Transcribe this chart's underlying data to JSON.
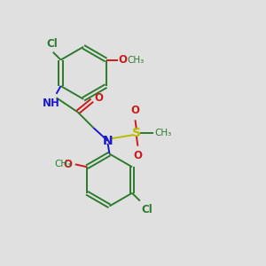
{
  "bg_color": "#e0e0e0",
  "bond_color": "#2d7a2d",
  "N_color": "#1a1acc",
  "O_color": "#cc1a1a",
  "S_color": "#bbbb00",
  "Cl_color": "#2d7a2d",
  "line_width": 1.4,
  "font_size": 8.5,
  "xlim": [
    0,
    10
  ],
  "ylim": [
    0,
    10
  ]
}
